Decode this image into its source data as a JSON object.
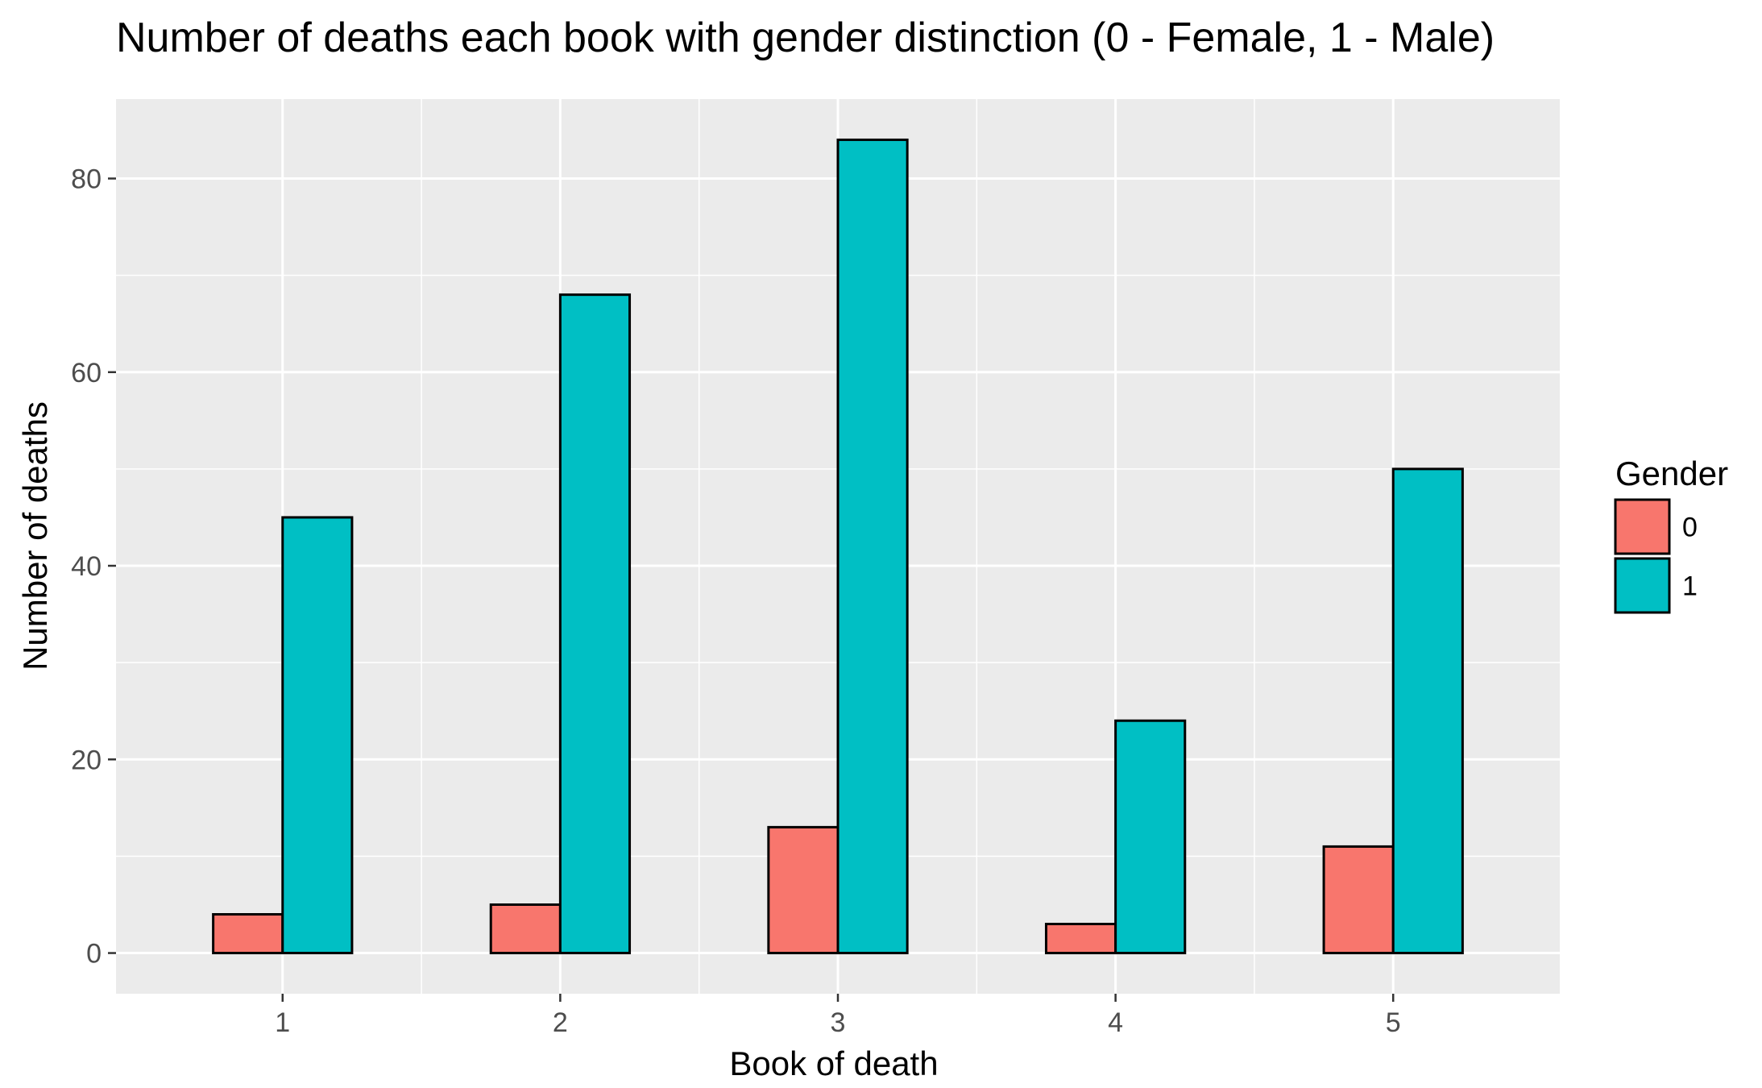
{
  "chart_data": {
    "type": "bar",
    "title": "Number of deaths each book with gender distinction (0 - Female, 1 - Male)",
    "xlabel": "Book of death",
    "ylabel": "Number of deaths",
    "categories": [
      "1",
      "2",
      "3",
      "4",
      "5"
    ],
    "series": [
      {
        "name": "0",
        "values": [
          4,
          5,
          13,
          3,
          11
        ],
        "color": "#F8766D"
      },
      {
        "name": "1",
        "values": [
          45,
          68,
          84,
          24,
          50
        ],
        "color": "#00BFC4"
      }
    ],
    "ylim": [
      -4.2,
      88.2
    ],
    "yticks": [
      0,
      20,
      40,
      60,
      80
    ],
    "legend": {
      "title": "Gender",
      "position": "right"
    },
    "grid": true,
    "panel_background": "#EBEBEB",
    "bar_outline": "#000000"
  }
}
